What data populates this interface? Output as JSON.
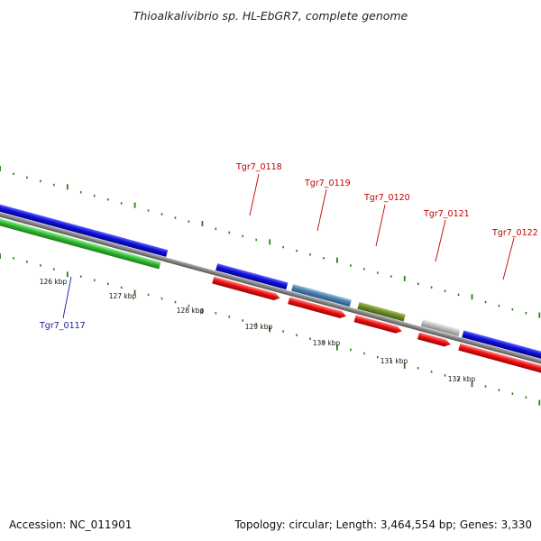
{
  "title": "Thioalkalivibrio sp. HL-EbGR7, complete genome",
  "footer": {
    "accession": "Accession: NC_011901",
    "summary": "Topology: circular; Length: 3,464,554 bp; Genes: 3,330"
  },
  "colors": {
    "backbone": "#808080",
    "ticks": "#2a7d1a",
    "label_highlight": "#1a1aa0",
    "label_default": "#c00000",
    "blue": "#1010dd",
    "green": "#33bb33",
    "red": "#ee1111",
    "steelblue": "#4a7fb0",
    "olive": "#6b8e23",
    "grey": "#bbbbbb"
  },
  "kbp_labels": [
    "126 kbp",
    "127 kbp",
    "128 kbp",
    "129 kbp",
    "130 kbp",
    "131 kbp",
    "132 kbp"
  ],
  "gene_labels": [
    {
      "id": "Tgr7_0117",
      "color": "#1a1aa0"
    },
    {
      "id": "Tgr7_0118",
      "color": "#c00000"
    },
    {
      "id": "Tgr7_0119",
      "color": "#c00000"
    },
    {
      "id": "Tgr7_0120",
      "color": "#c00000"
    },
    {
      "id": "Tgr7_0121",
      "color": "#c00000"
    },
    {
      "id": "Tgr7_0122",
      "color": "#c00000"
    }
  ],
  "genes": [
    {
      "row": "forward",
      "color": "blue"
    },
    {
      "row": "reverse",
      "color": "green"
    },
    {
      "row": "forward",
      "color": "blue"
    },
    {
      "row": "reverse",
      "color": "red"
    },
    {
      "row": "forward",
      "color": "steelblue"
    },
    {
      "row": "reverse",
      "color": "red"
    },
    {
      "row": "forward",
      "color": "olive"
    },
    {
      "row": "reverse",
      "color": "red"
    },
    {
      "row": "forward",
      "color": "grey"
    },
    {
      "row": "reverse",
      "color": "red"
    },
    {
      "row": "forward",
      "color": "blue"
    },
    {
      "row": "reverse",
      "color": "red"
    }
  ]
}
